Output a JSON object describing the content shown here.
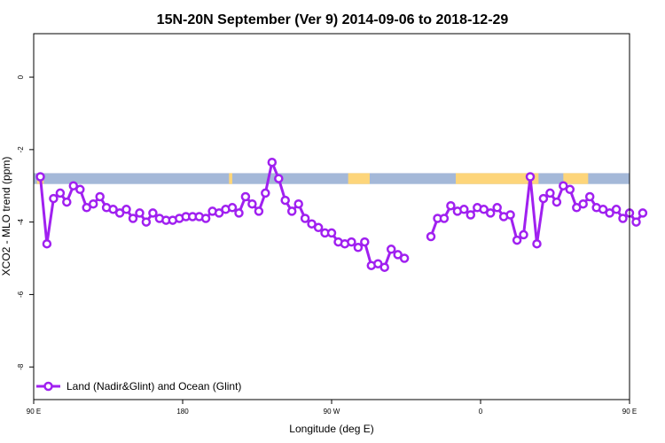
{
  "chart_data": {
    "type": "line",
    "title": "15N-20N September (Ver 9)   2014-09-06 to 2018-12-29",
    "xlabel": "Longitude (deg E)",
    "ylabel": "XCO2 - MLO trend (ppm)",
    "xlim": [
      90,
      450
    ],
    "ylim": [
      -8.9,
      1.2
    ],
    "x_ticks": [
      {
        "value": 90,
        "label": "90 E"
      },
      {
        "value": 180,
        "label": "180"
      },
      {
        "value": 270,
        "label": "90 W"
      },
      {
        "value": 360,
        "label": "0"
      },
      {
        "value": 450,
        "label": "90 E"
      },
      {
        "value": 540,
        "label": "180"
      }
    ],
    "y_ticks": [
      {
        "value": 0,
        "label": "0"
      },
      {
        "value": -2,
        "label": "-2"
      },
      {
        "value": -4,
        "label": "-4"
      },
      {
        "value": -6,
        "label": "-6"
      },
      {
        "value": -8,
        "label": "-8"
      }
    ],
    "grid": false,
    "legend_position": "bottom-left",
    "colors": {
      "series": "#a020f0",
      "ocean_band": "#a4b8d8",
      "land_band": "#fdd57a",
      "axis": "#000000"
    },
    "land_ocean_band": {
      "y_range": [
        -2.65,
        -2.95
      ],
      "land_longitudes": [
        [
          92,
          96
        ],
        [
          208,
          210
        ],
        [
          280,
          293
        ],
        [
          345,
          395
        ],
        [
          410,
          425
        ],
        [
          465,
          470
        ],
        [
          480,
          495
        ],
        [
          496,
          508
        ]
      ]
    },
    "series": [
      {
        "name": "Land (Nadir&Glint) and Ocean (Glint)",
        "segments": [
          [
            [
              94,
              -2.75
            ],
            [
              98,
              -4.6
            ],
            [
              102,
              -3.35
            ],
            [
              106,
              -3.2
            ],
            [
              110,
              -3.45
            ],
            [
              114,
              -3.0
            ],
            [
              118,
              -3.1
            ],
            [
              122,
              -3.6
            ],
            [
              126,
              -3.5
            ],
            [
              130,
              -3.3
            ],
            [
              134,
              -3.6
            ],
            [
              138,
              -3.65
            ],
            [
              142,
              -3.75
            ],
            [
              146,
              -3.65
            ],
            [
              150,
              -3.9
            ],
            [
              154,
              -3.75
            ],
            [
              158,
              -4.0
            ],
            [
              162,
              -3.75
            ],
            [
              166,
              -3.9
            ],
            [
              170,
              -3.95
            ],
            [
              174,
              -3.95
            ],
            [
              178,
              -3.9
            ],
            [
              182,
              -3.85
            ],
            [
              186,
              -3.85
            ],
            [
              190,
              -3.85
            ],
            [
              194,
              -3.9
            ],
            [
              198,
              -3.7
            ],
            [
              202,
              -3.75
            ],
            [
              206,
              -3.65
            ],
            [
              210,
              -3.6
            ],
            [
              214,
              -3.75
            ],
            [
              218,
              -3.3
            ],
            [
              222,
              -3.5
            ],
            [
              226,
              -3.7
            ],
            [
              230,
              -3.2
            ],
            [
              234,
              -2.35
            ],
            [
              238,
              -2.8
            ],
            [
              242,
              -3.4
            ],
            [
              246,
              -3.7
            ],
            [
              250,
              -3.5
            ],
            [
              254,
              -3.9
            ],
            [
              258,
              -4.05
            ],
            [
              262,
              -4.15
            ],
            [
              266,
              -4.3
            ],
            [
              270,
              -4.3
            ],
            [
              274,
              -4.55
            ],
            [
              278,
              -4.6
            ],
            [
              282,
              -4.55
            ],
            [
              286,
              -4.7
            ],
            [
              290,
              -4.55
            ],
            [
              294,
              -5.2
            ],
            [
              298,
              -5.15
            ],
            [
              302,
              -5.25
            ],
            [
              306,
              -4.75
            ],
            [
              310,
              -4.9
            ],
            [
              314,
              -5.0
            ]
          ],
          [
            [
              330,
              -4.4
            ],
            [
              334,
              -3.9
            ],
            [
              338,
              -3.9
            ],
            [
              342,
              -3.55
            ],
            [
              346,
              -3.7
            ],
            [
              350,
              -3.65
            ],
            [
              354,
              -3.8
            ],
            [
              358,
              -3.6
            ],
            [
              362,
              -3.65
            ],
            [
              366,
              -3.75
            ],
            [
              370,
              -3.6
            ],
            [
              374,
              -3.85
            ],
            [
              378,
              -3.8
            ],
            [
              382,
              -4.5
            ],
            [
              386,
              -4.35
            ],
            [
              390,
              -2.75
            ],
            [
              394,
              -4.6
            ],
            [
              398,
              -3.35
            ],
            [
              402,
              -3.2
            ],
            [
              406,
              -3.45
            ],
            [
              410,
              -3.0
            ],
            [
              414,
              -3.1
            ],
            [
              418,
              -3.6
            ],
            [
              422,
              -3.5
            ],
            [
              426,
              -3.3
            ],
            [
              430,
              -3.6
            ],
            [
              434,
              -3.65
            ],
            [
              438,
              -3.75
            ],
            [
              442,
              -3.65
            ],
            [
              446,
              -3.9
            ],
            [
              450,
              -3.75
            ],
            [
              454,
              -4.0
            ],
            [
              458,
              -3.75
            ]
          ]
        ]
      }
    ]
  }
}
